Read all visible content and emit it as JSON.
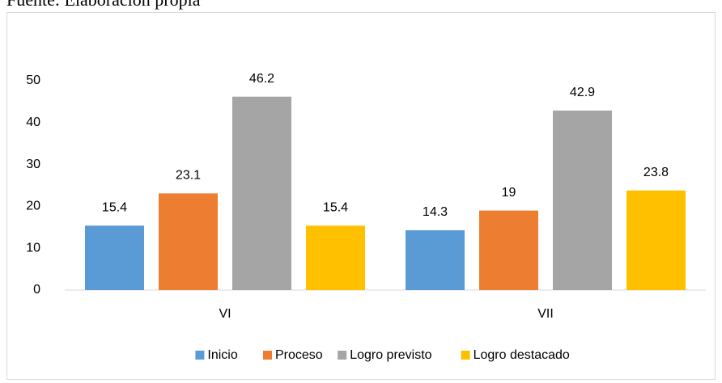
{
  "caption": "Fuente: Elaboración propia",
  "chart_data": {
    "type": "bar",
    "categories": [
      "VI",
      "VII"
    ],
    "series": [
      {
        "name": "Inicio",
        "color": "#5b9bd5",
        "values": [
          15.4,
          14.3
        ]
      },
      {
        "name": "Proceso",
        "color": "#ed7d31",
        "values": [
          23.1,
          19
        ]
      },
      {
        "name": "Logro previsto",
        "color": "#a5a5a5",
        "values": [
          46.2,
          42.9
        ]
      },
      {
        "name": "Logro destacado",
        "color": "#ffc000",
        "values": [
          15.4,
          23.8
        ]
      }
    ],
    "ylim": [
      0,
      50
    ],
    "yticks": [
      0,
      10,
      20,
      30,
      40,
      50
    ],
    "grid": false,
    "legend": "bottom"
  }
}
